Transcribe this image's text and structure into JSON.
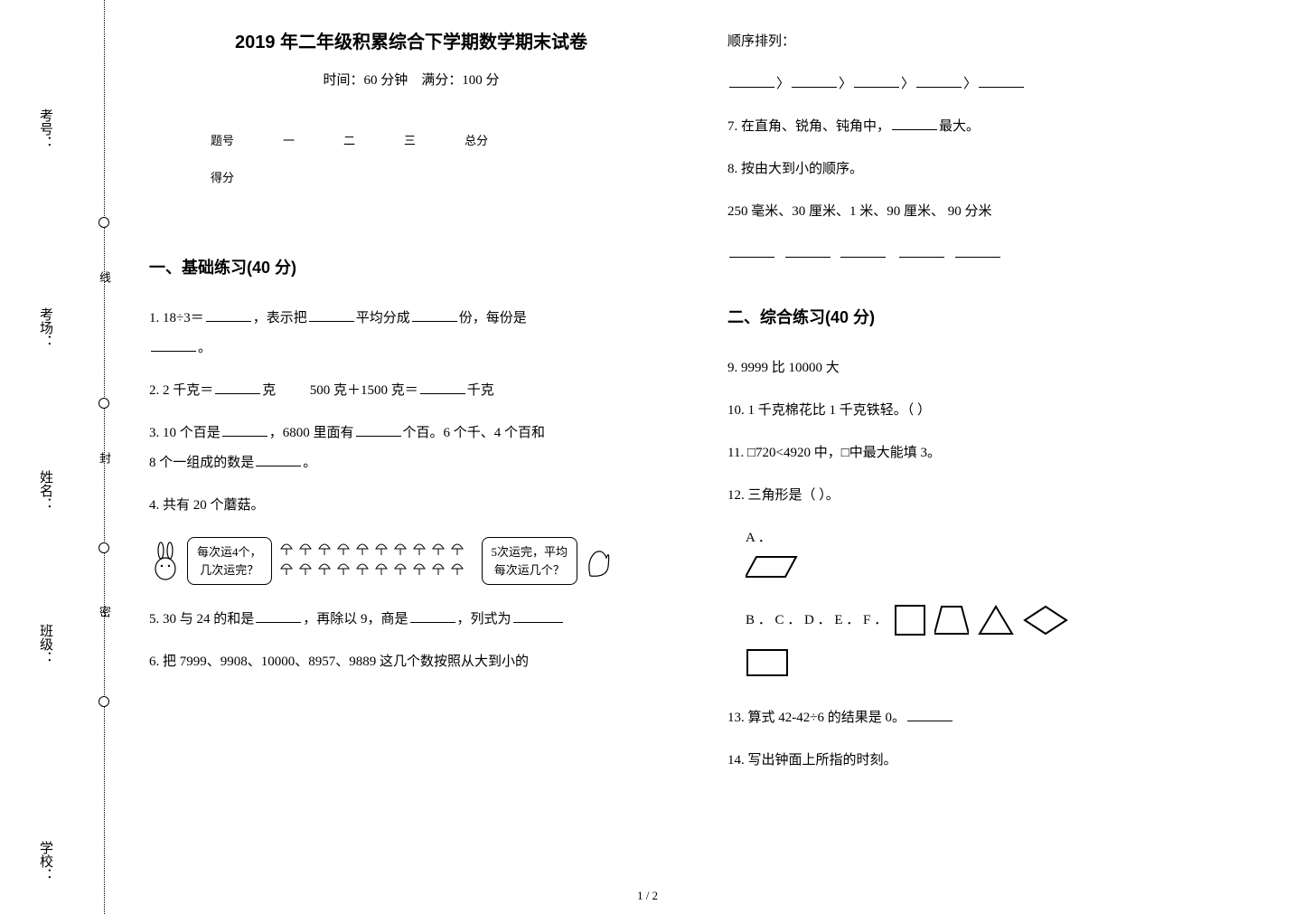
{
  "binding": {
    "labels": [
      "考号：",
      "考场：",
      "姓名：",
      "班级：",
      "学校："
    ],
    "dotted_labels": [
      "线",
      "封",
      "密"
    ],
    "circle_tops": [
      240,
      440,
      600,
      770
    ],
    "label_tops": [
      120,
      340,
      520,
      690,
      930
    ],
    "dotted_label_tops": [
      300,
      500,
      670
    ]
  },
  "header": {
    "title": "2019 年二年级积累综合下学期数学期末试卷",
    "subtitle_time": "时间：60 分钟",
    "subtitle_full": "满分：100 分"
  },
  "score_table": {
    "row1": [
      "题号",
      "一",
      "二",
      "三",
      "总分"
    ],
    "row2_label": "得分"
  },
  "section1": {
    "heading": "一、基础练习(40 分)",
    "q1_a": "1.  18÷3＝",
    "q1_b": "，表示把",
    "q1_c": "平均分成",
    "q1_d": "份，每份是",
    "q1_e": "。",
    "q2_a": "2.  2 千克＝",
    "q2_b": "克",
    "q2_c": "500 克＋1500 克＝",
    "q2_d": "千克",
    "q3_a": "3. 10 个百是",
    "q3_b": "，6800 里面有",
    "q3_c": "个百。6 个千、4 个百和",
    "q3_d": "8 个一组成的数是",
    "q3_e": "。",
    "q4": "4.  共有 20 个蘑菇。",
    "bubble_left_l1": "每次运4个，",
    "bubble_left_l2": "几次运完？",
    "bubble_right_l1": "5次运完，平均",
    "bubble_right_l2": "每次运几个？",
    "q5_a": "5.  30 与 24 的和是",
    "q5_b": "，再除以 9，商是",
    "q5_c": "，列式为",
    "q6": "6.  把 7999、9908、10000、8957、9889 这几个数按照从大到小的"
  },
  "col2": {
    "cont_label": "顺序排列：",
    "arrows": "〉",
    "q7_a": "7.  在直角、锐角、钝角中，",
    "q7_b": "最大。",
    "q8": "8.  按由大到小的顺序。",
    "q8_items": "250 毫米、30 厘米、1 米、90 厘米、 90 分米",
    "section2_heading": "二、综合练习(40 分)",
    "q9": "9.  9999 比 10000 大",
    "q10": "10.  1 千克棉花比 1 千克铁轻。（            ）",
    "q11": "11.  □720<4920 中，□中最大能填 3。",
    "q12": "12.  三角形是（ ）。",
    "opt_a": "A ．",
    "opts_rest": "B ．  C ．  D ．  E ．  F ．",
    "q13_a": "13.  算式 42-42÷6 的结果是 0。",
    "q14": "14.  写出钟面上所指的时刻。"
  },
  "page_number": "1 / 2",
  "colors": {
    "text": "#000000",
    "bg": "#ffffff"
  }
}
